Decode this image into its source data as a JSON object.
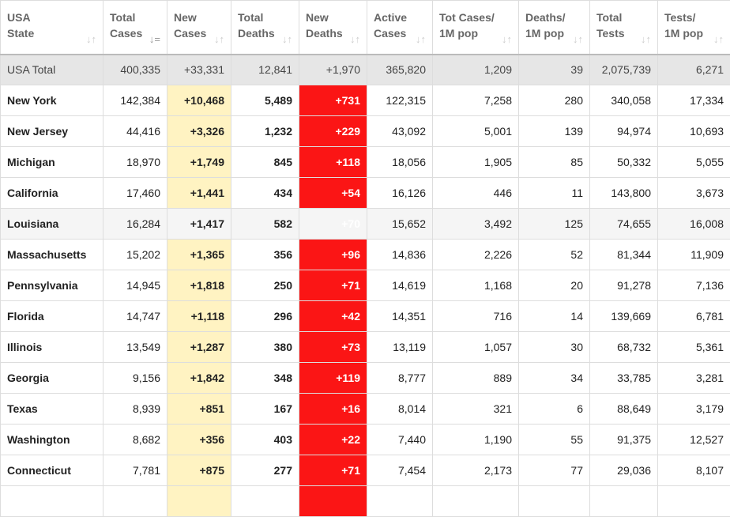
{
  "columns": [
    {
      "line1": "USA",
      "line2": "State",
      "sort": "↓↑"
    },
    {
      "line1": "Total",
      "line2": "Cases",
      "sort": "↓="
    },
    {
      "line1": "New",
      "line2": "Cases",
      "sort": "↓↑"
    },
    {
      "line1": "Total",
      "line2": "Deaths",
      "sort": "↓↑"
    },
    {
      "line1": "New",
      "line2": "Deaths",
      "sort": "↓↑"
    },
    {
      "line1": "Active",
      "line2": "Cases",
      "sort": "↓↑"
    },
    {
      "line1": "Tot Cases/",
      "line2": "1M pop",
      "sort": "↓↑"
    },
    {
      "line1": "Deaths/",
      "line2": "1M pop",
      "sort": "↓↑"
    },
    {
      "line1": "Total",
      "line2": "Tests",
      "sort": "↓↑"
    },
    {
      "line1": "Tests/",
      "line2": "1M pop",
      "sort": "↓↑"
    }
  ],
  "total": [
    "USA Total",
    "400,335",
    "+33,331",
    "12,841",
    "+1,970",
    "365,820",
    "1,209",
    "39",
    "2,075,739",
    "6,271"
  ],
  "rows": [
    [
      "New York",
      "142,384",
      "+10,468",
      "5,489",
      "+731",
      "122,315",
      "7,258",
      "280",
      "340,058",
      "17,334"
    ],
    [
      "New Jersey",
      "44,416",
      "+3,326",
      "1,232",
      "+229",
      "43,092",
      "5,001",
      "139",
      "94,974",
      "10,693"
    ],
    [
      "Michigan",
      "18,970",
      "+1,749",
      "845",
      "+118",
      "18,056",
      "1,905",
      "85",
      "50,332",
      "5,055"
    ],
    [
      "California",
      "17,460",
      "+1,441",
      "434",
      "+54",
      "16,126",
      "446",
      "11",
      "143,800",
      "3,673"
    ],
    [
      "Louisiana",
      "16,284",
      "+1,417",
      "582",
      "+70",
      "15,652",
      "3,492",
      "125",
      "74,655",
      "16,008"
    ],
    [
      "Massachusetts",
      "15,202",
      "+1,365",
      "356",
      "+96",
      "14,836",
      "2,226",
      "52",
      "81,344",
      "11,909"
    ],
    [
      "Pennsylvania",
      "14,945",
      "+1,818",
      "250",
      "+71",
      "14,619",
      "1,168",
      "20",
      "91,278",
      "7,136"
    ],
    [
      "Florida",
      "14,747",
      "+1,118",
      "296",
      "+42",
      "14,351",
      "716",
      "14",
      "139,669",
      "6,781"
    ],
    [
      "Illinois",
      "13,549",
      "+1,287",
      "380",
      "+73",
      "13,119",
      "1,057",
      "30",
      "68,732",
      "5,361"
    ],
    [
      "Georgia",
      "9,156",
      "+1,842",
      "348",
      "+119",
      "8,777",
      "889",
      "34",
      "33,785",
      "3,281"
    ],
    [
      "Texas",
      "8,939",
      "+851",
      "167",
      "+16",
      "8,014",
      "321",
      "6",
      "88,649",
      "3,179"
    ],
    [
      "Washington",
      "8,682",
      "+356",
      "403",
      "+22",
      "7,440",
      "1,190",
      "55",
      "91,375",
      "12,527"
    ],
    [
      "Connecticut",
      "7,781",
      "+875",
      "277",
      "+71",
      "7,454",
      "2,173",
      "77",
      "29,036",
      "8,107"
    ],
    [
      "",
      "",
      "",
      "",
      "",
      "",
      "",
      "",
      "",
      ""
    ]
  ],
  "colors": {
    "new_cases_bg": "#fff3c2",
    "new_deaths_bg": "#fb1515",
    "total_row_bg": "#e6e6e6"
  }
}
